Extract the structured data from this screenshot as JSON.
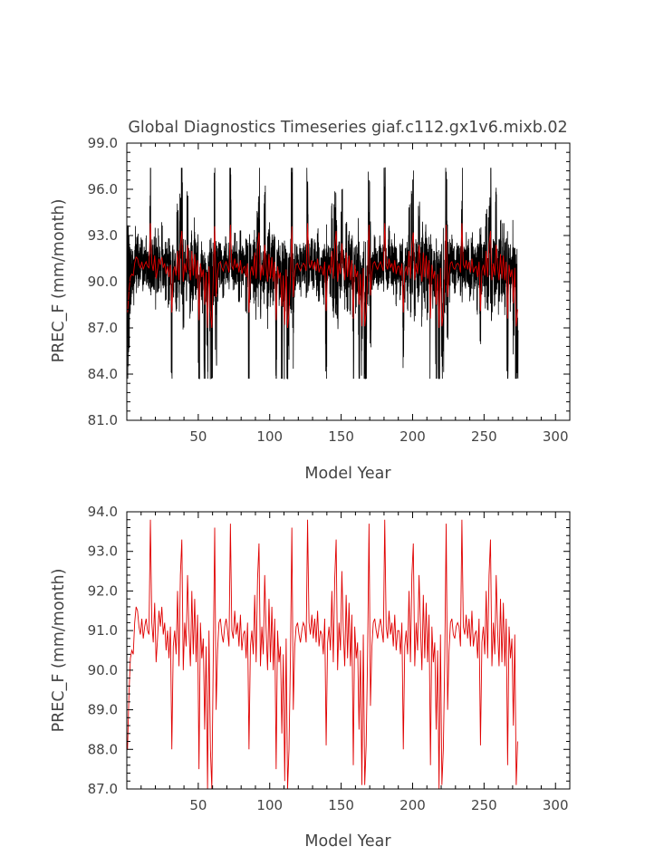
{
  "figure": {
    "title": "Global Diagnostics Timeseries giaf.c112.gx1v6.mixb.02"
  },
  "colors": {
    "raw": "#000000",
    "smooth": "#e00000",
    "axes": "#000000",
    "text": "#444444"
  },
  "chart_data": [
    {
      "type": "line",
      "title": "Global Diagnostics Timeseries giaf.c112.gx1v6.mixb.02",
      "xlabel": "Model Year",
      "ylabel": "PREC_F (mm/month)",
      "xlim": [
        0,
        310
      ],
      "ylim": [
        81.0,
        99.0
      ],
      "xticks": [
        50,
        100,
        150,
        200,
        250,
        300
      ],
      "xtick_labels": [
        "50",
        "100",
        "150",
        "200",
        "250",
        "300"
      ],
      "yticks": [
        81,
        84,
        87,
        90,
        93,
        96,
        99
      ],
      "ytick_labels": [
        "81.0",
        "84.0",
        "87.0",
        "90.0",
        "93.0",
        "96.0",
        "99.0"
      ],
      "grid": false,
      "series": [
        {
          "color": "#000000",
          "note": "monthly values, 12 per model year",
          "x_start": 0,
          "x_step": 0.08333,
          "values": []
        },
        {
          "color": "#e00000",
          "note": "annual means",
          "x_start": 0.5,
          "x_step": 1,
          "values": []
        }
      ]
    },
    {
      "type": "line",
      "title": "",
      "xlabel": "Model Year",
      "ylabel": "PREC_F (mm/month)",
      "xlim": [
        0,
        310
      ],
      "ylim": [
        87.0,
        94.0
      ],
      "xticks": [
        50,
        100,
        150,
        200,
        250,
        300
      ],
      "xtick_labels": [
        "50",
        "100",
        "150",
        "200",
        "250",
        "300"
      ],
      "yticks": [
        87,
        88,
        89,
        90,
        91,
        92,
        93,
        94
      ],
      "ytick_labels": [
        "87.0",
        "88.0",
        "89.0",
        "90.0",
        "91.0",
        "92.0",
        "93.0",
        "94.0"
      ],
      "grid": false,
      "series": [
        {
          "color": "#e00000",
          "note": "annual means",
          "x_start": 0.5,
          "x_step": 1,
          "values": [
            88.0,
            89.4,
            90.3,
            90.5,
            90.4,
            91.2,
            91.6,
            91.5,
            91.1,
            90.9,
            91.3,
            90.8,
            91.1,
            91.3,
            91.0,
            90.9,
            93.8,
            91.2,
            90.7,
            91.7,
            90.2,
            90.8,
            91.5,
            91.1,
            91.6,
            90.9,
            91.2,
            90.5,
            91.0,
            90.3,
            91.1,
            88.0,
            90.6,
            91.0,
            90.4,
            92.0,
            90.1,
            92.4,
            93.3,
            90.0,
            91.2,
            90.6,
            92.4,
            91.0,
            90.1,
            92.0,
            90.4,
            91.8,
            90.2,
            91.4,
            87.5,
            91.2,
            90.3,
            90.8,
            88.5,
            90.6,
            87.0,
            91.0,
            88.0,
            87.0,
            90.3,
            93.6,
            89.0,
            90.5,
            91.2,
            91.3,
            90.9,
            90.7,
            91.1,
            91.3,
            91.0,
            90.6,
            93.7,
            91.0,
            90.8,
            91.5,
            90.9,
            91.2,
            90.6,
            91.4,
            90.5,
            90.9,
            91.0,
            90.3,
            91.2,
            88.0,
            90.6,
            91.0,
            90.4,
            91.9,
            90.2,
            92.3,
            93.2,
            90.1,
            91.1,
            90.4,
            92.4,
            91.0,
            90.0,
            91.8,
            90.2,
            91.6,
            90.0,
            91.3,
            87.5,
            91.0,
            90.2,
            90.6,
            88.4,
            90.4,
            87.2,
            90.8,
            87.0,
            88.0,
            90.3,
            93.6,
            89.0,
            90.6,
            91.1,
            91.2,
            90.9,
            90.7,
            91.0,
            91.2,
            91.1,
            90.7,
            93.8,
            91.2,
            90.9,
            91.4,
            90.8,
            91.3,
            90.7,
            91.5,
            90.6,
            91.0,
            90.9,
            90.4,
            91.3,
            88.1,
            90.7,
            91.1,
            90.5,
            92.0,
            90.2,
            92.3,
            93.3,
            90.0,
            91.2,
            90.5,
            92.5,
            91.0,
            90.1,
            91.9,
            90.3,
            91.7,
            90.1,
            91.4,
            87.6,
            91.1,
            90.3,
            90.7,
            88.5,
            90.5,
            87.1,
            90.9,
            87.1,
            88.1,
            90.4,
            93.7,
            89.1,
            90.6,
            91.2,
            91.3,
            91.0,
            90.8,
            91.1,
            91.3,
            91.0,
            90.7,
            93.8,
            91.1,
            90.8,
            91.5,
            90.9,
            91.2,
            90.6,
            91.4,
            90.5,
            91.0,
            91.0,
            90.4,
            91.2,
            88.0,
            90.6,
            91.0,
            90.4,
            92.0,
            90.2,
            92.4,
            93.2,
            90.1,
            91.2,
            90.5,
            92.4,
            91.1,
            90.0,
            91.9,
            90.3,
            91.7,
            90.2,
            91.4,
            87.6,
            91.1,
            90.2,
            90.7,
            88.5,
            90.5,
            87.0,
            90.9,
            87.1,
            88.0,
            90.3,
            93.7,
            89.0,
            90.5,
            91.2,
            91.3,
            90.9,
            90.8,
            91.1,
            91.2,
            91.1,
            90.6,
            93.8,
            91.1,
            90.9,
            91.4,
            90.8,
            91.3,
            90.6,
            91.5,
            90.6,
            90.9,
            91.0,
            90.3,
            91.3,
            88.1,
            90.7,
            91.1,
            90.4,
            92.0,
            90.3,
            92.4,
            93.3,
            90.1,
            91.2,
            90.4,
            92.4,
            91.0,
            90.1,
            91.8,
            90.2,
            91.7,
            90.1,
            91.3,
            87.6,
            91.1,
            90.3,
            90.8,
            88.6,
            90.9,
            87.1,
            88.2
          ]
        }
      ]
    }
  ]
}
